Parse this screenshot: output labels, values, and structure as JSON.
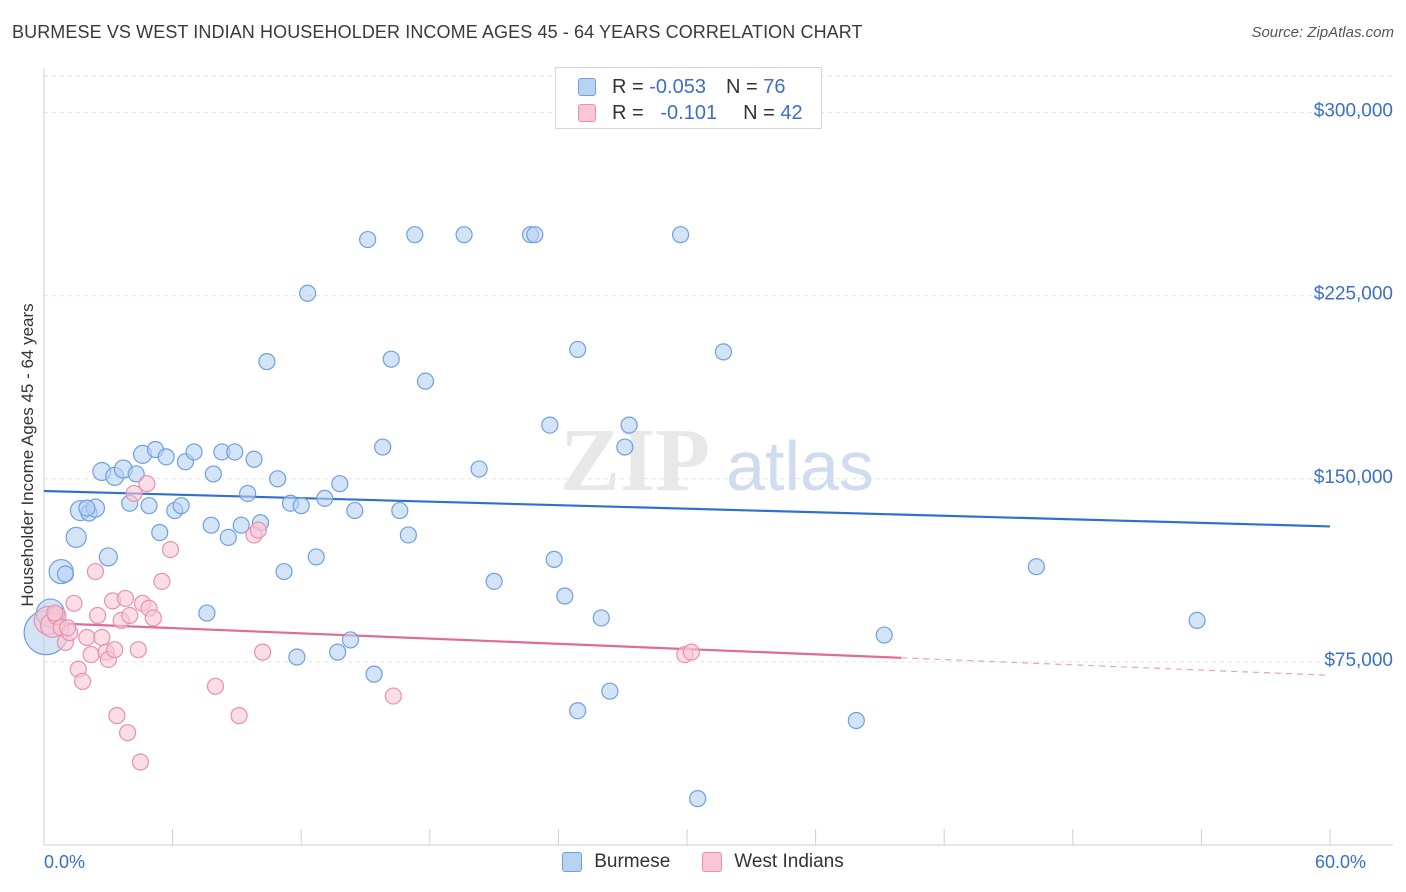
{
  "header": {
    "title": "BURMESE VS WEST INDIAN HOUSEHOLDER INCOME AGES 45 - 64 YEARS CORRELATION CHART",
    "source": "Source: ZipAtlas.com"
  },
  "watermark": {
    "zip": "ZIP",
    "atlas": "atlas"
  },
  "legend_stats": [
    {
      "r_label": "R =",
      "r_value": "-0.053",
      "n_label": "N =",
      "n_value": "76",
      "fill": "#b8d2f2",
      "stroke": "#6f9fe0"
    },
    {
      "r_label": "R =",
      "r_value": "-0.101",
      "n_label": "N =",
      "n_value": "42",
      "fill": "#f8c6d6",
      "stroke": "#ea8fb0"
    }
  ],
  "chart_data": {
    "type": "scatter",
    "title": "BURMESE VS WEST INDIAN HOUSEHOLDER INCOME AGES 45 - 64 YEARS CORRELATION CHART",
    "xlabel": "",
    "ylabel": "Householder Income Ages 45 - 64 years",
    "xlim": [
      0,
      60
    ],
    "ylim": [
      0,
      315000
    ],
    "x_tick_labels": [
      "0.0%",
      "60.0%"
    ],
    "y_ticks": [
      {
        "value": 300000,
        "label": "$300,000"
      },
      {
        "value": 225000,
        "label": "$225,000"
      },
      {
        "value": 150000,
        "label": "$150,000"
      },
      {
        "value": 75000,
        "label": "$75,000"
      }
    ],
    "grid": true,
    "series": [
      {
        "name": "Burmese",
        "color": "#6f9fe0",
        "fill": "#b8d2f2",
        "trend": {
          "x0": 0,
          "y0": 145000,
          "x1": 60,
          "y1": 130500,
          "solid_to": 60
        },
        "points": [
          [
            0.1,
            87000,
            22
          ],
          [
            0.3,
            95000,
            14
          ],
          [
            0.8,
            112000,
            12
          ],
          [
            1.0,
            111000,
            8
          ],
          [
            1.5,
            126000,
            10
          ],
          [
            1.7,
            137000,
            10
          ],
          [
            2.1,
            136000,
            8
          ],
          [
            2.4,
            138000,
            9
          ],
          [
            2.7,
            153000,
            9
          ],
          [
            3.0,
            118000,
            9
          ],
          [
            3.3,
            151000,
            9
          ],
          [
            3.7,
            154000,
            9
          ],
          [
            4.0,
            140000,
            8
          ],
          [
            4.3,
            152000,
            8
          ],
          [
            4.6,
            160000,
            9
          ],
          [
            4.9,
            139000,
            8
          ],
          [
            5.2,
            162000,
            8
          ],
          [
            5.4,
            128000,
            8
          ],
          [
            5.7,
            159000,
            8
          ],
          [
            6.1,
            137000,
            8
          ],
          [
            6.4,
            139000,
            8
          ],
          [
            6.6,
            157000,
            8
          ],
          [
            7.0,
            161000,
            8
          ],
          [
            7.6,
            95000,
            8
          ],
          [
            7.8,
            131000,
            8
          ],
          [
            7.9,
            152000,
            8
          ],
          [
            8.3,
            161000,
            8
          ],
          [
            8.6,
            126000,
            8
          ],
          [
            8.9,
            161000,
            8
          ],
          [
            9.2,
            131000,
            8
          ],
          [
            9.5,
            144000,
            8
          ],
          [
            9.8,
            158000,
            8
          ],
          [
            10.1,
            132000,
            8
          ],
          [
            10.4,
            198000,
            8
          ],
          [
            10.9,
            150000,
            8
          ],
          [
            11.2,
            112000,
            8
          ],
          [
            11.5,
            140000,
            8
          ],
          [
            11.8,
            77000,
            8
          ],
          [
            12.0,
            139000,
            8
          ],
          [
            12.3,
            226000,
            8
          ],
          [
            12.7,
            118000,
            8
          ],
          [
            13.1,
            142000,
            8
          ],
          [
            13.7,
            79000,
            8
          ],
          [
            14.3,
            84000,
            8
          ],
          [
            14.5,
            137000,
            8
          ],
          [
            13.8,
            148000,
            8
          ],
          [
            15.1,
            248000,
            8
          ],
          [
            15.4,
            70000,
            8
          ],
          [
            15.8,
            163000,
            8
          ],
          [
            16.2,
            199000,
            8
          ],
          [
            16.6,
            137000,
            8
          ],
          [
            17.0,
            127000,
            8
          ],
          [
            17.3,
            250000,
            8
          ],
          [
            17.8,
            190000,
            8
          ],
          [
            19.6,
            250000,
            8
          ],
          [
            20.3,
            154000,
            8
          ],
          [
            21.0,
            108000,
            8
          ],
          [
            22.7,
            250000,
            8
          ],
          [
            22.9,
            250000,
            8
          ],
          [
            23.6,
            172000,
            8
          ],
          [
            23.8,
            117000,
            8
          ],
          [
            24.3,
            102000,
            8
          ],
          [
            24.9,
            203000,
            8
          ],
          [
            24.9,
            55000,
            8
          ],
          [
            26.0,
            93000,
            8
          ],
          [
            26.4,
            63000,
            8
          ],
          [
            27.1,
            163000,
            8
          ],
          [
            27.3,
            172000,
            8
          ],
          [
            29.7,
            250000,
            8
          ],
          [
            30.5,
            19000,
            8
          ],
          [
            31.7,
            202000,
            8
          ],
          [
            37.9,
            51000,
            8
          ],
          [
            39.2,
            86000,
            8
          ],
          [
            46.3,
            114000,
            8
          ],
          [
            53.8,
            92000,
            8
          ],
          [
            2.0,
            138000,
            8
          ]
        ]
      },
      {
        "name": "West Indians",
        "color": "#ea8fb0",
        "fill": "#f8c6d6",
        "trend": {
          "x0": 0,
          "y0": 91000,
          "x1": 60,
          "y1": 69500,
          "solid_to": 40
        },
        "points": [
          [
            0.2,
            92000,
            14
          ],
          [
            0.4,
            90000,
            12
          ],
          [
            0.6,
            94000,
            9
          ],
          [
            0.8,
            89000,
            8
          ],
          [
            1.0,
            83000,
            8
          ],
          [
            1.2,
            87000,
            8
          ],
          [
            1.4,
            99000,
            8
          ],
          [
            1.6,
            72000,
            8
          ],
          [
            1.8,
            67000,
            8
          ],
          [
            2.0,
            85000,
            8
          ],
          [
            2.2,
            78000,
            8
          ],
          [
            2.4,
            112000,
            8
          ],
          [
            2.5,
            94000,
            8
          ],
          [
            2.7,
            85000,
            8
          ],
          [
            2.9,
            79000,
            8
          ],
          [
            3.0,
            76000,
            8
          ],
          [
            3.2,
            100000,
            8
          ],
          [
            3.3,
            80000,
            8
          ],
          [
            3.4,
            53000,
            8
          ],
          [
            3.6,
            92000,
            8
          ],
          [
            3.8,
            101000,
            8
          ],
          [
            3.9,
            46000,
            8
          ],
          [
            4.0,
            94000,
            8
          ],
          [
            4.2,
            144000,
            8
          ],
          [
            4.4,
            80000,
            8
          ],
          [
            4.5,
            34000,
            8
          ],
          [
            4.6,
            99000,
            8
          ],
          [
            4.8,
            148000,
            8
          ],
          [
            4.9,
            97000,
            8
          ],
          [
            5.1,
            93000,
            8
          ],
          [
            5.5,
            108000,
            8
          ],
          [
            5.9,
            121000,
            8
          ],
          [
            8.0,
            65000,
            8
          ],
          [
            9.1,
            53000,
            8
          ],
          [
            9.8,
            127000,
            8
          ],
          [
            10.0,
            129000,
            8
          ],
          [
            10.2,
            79000,
            8
          ],
          [
            16.3,
            61000,
            8
          ],
          [
            29.9,
            78000,
            8
          ],
          [
            30.2,
            79000,
            8
          ],
          [
            0.5,
            95000,
            8
          ],
          [
            1.1,
            89000,
            8
          ]
        ]
      }
    ]
  },
  "bottom_legend": [
    {
      "label": "Burmese",
      "fill": "#b8d2f2",
      "stroke": "#6f9fe0"
    },
    {
      "label": "West Indians",
      "fill": "#f8c6d6",
      "stroke": "#ea8fb0"
    }
  ]
}
